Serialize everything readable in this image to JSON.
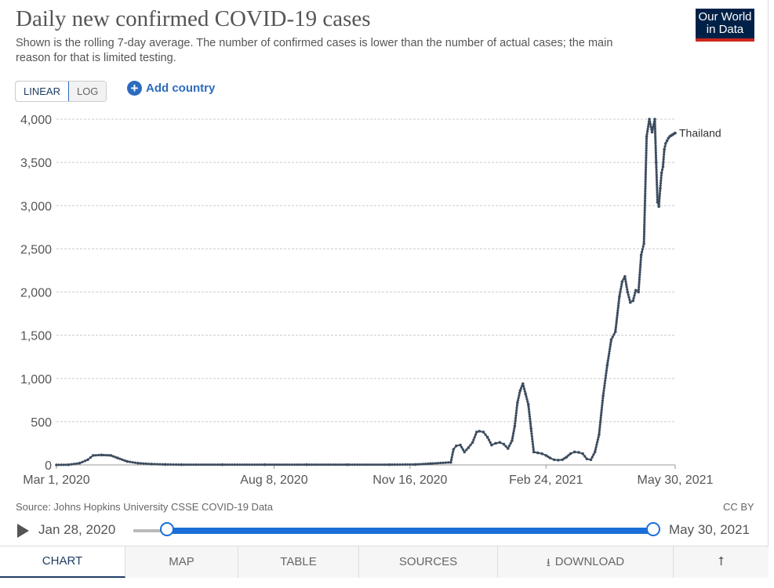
{
  "header": {
    "title": "Daily new confirmed COVID-19 cases",
    "subtitle": "Shown is the rolling 7-day average. The number of confirmed cases is lower than the number of actual cases; the main reason for that is limited testing.",
    "logo_line1": "Our World",
    "logo_line2": "in Data"
  },
  "controls": {
    "linear_label": "LINEAR",
    "log_label": "LOG",
    "add_country_label": "Add country",
    "add_country_icon": "plus-circle-icon"
  },
  "chart_data": {
    "type": "line",
    "title": "Daily new confirmed COVID-19 cases",
    "xlabel": "",
    "ylabel": "",
    "ylim": [
      0,
      4000
    ],
    "y_ticks": [
      0,
      500,
      1000,
      1500,
      2000,
      2500,
      3000,
      3500,
      4000
    ],
    "y_tick_labels": [
      "0",
      "500",
      "1,000",
      "1,500",
      "2,000",
      "2,500",
      "3,000",
      "3,500",
      "4,000"
    ],
    "x_tick_labels": [
      "Mar 1, 2020",
      "Aug 8, 2020",
      "Nov 16, 2020",
      "Feb 24, 2021",
      "May 30, 2021"
    ],
    "x_tick_dates": [
      "2020-03-01",
      "2020-08-08",
      "2020-11-16",
      "2021-02-24",
      "2021-05-30"
    ],
    "xlim": [
      "2020-03-01",
      "2021-05-30"
    ],
    "grid": true,
    "color": "#3c4c5e",
    "series": [
      {
        "name": "Thailand",
        "x": [
          "2020-03-01",
          "2020-03-10",
          "2020-03-18",
          "2020-03-24",
          "2020-03-28",
          "2020-04-03",
          "2020-04-10",
          "2020-04-15",
          "2020-04-22",
          "2020-04-30",
          "2020-05-10",
          "2020-05-20",
          "2020-06-01",
          "2020-07-01",
          "2020-08-01",
          "2020-09-01",
          "2020-10-01",
          "2020-11-01",
          "2020-11-20",
          "2020-12-01",
          "2020-12-16",
          "2020-12-18",
          "2020-12-20",
          "2020-12-23",
          "2020-12-26",
          "2020-12-29",
          "2021-01-01",
          "2021-01-04",
          "2021-01-06",
          "2021-01-09",
          "2021-01-12",
          "2021-01-15",
          "2021-01-18",
          "2021-01-21",
          "2021-01-24",
          "2021-01-27",
          "2021-01-30",
          "2021-02-01",
          "2021-02-03",
          "2021-02-05",
          "2021-02-07",
          "2021-02-09",
          "2021-02-11",
          "2021-02-13",
          "2021-02-15",
          "2021-02-18",
          "2021-02-21",
          "2021-02-24",
          "2021-02-27",
          "2021-03-02",
          "2021-03-05",
          "2021-03-08",
          "2021-03-11",
          "2021-03-14",
          "2021-03-17",
          "2021-03-20",
          "2021-03-23",
          "2021-03-26",
          "2021-03-29",
          "2021-04-01",
          "2021-04-04",
          "2021-04-07",
          "2021-04-10",
          "2021-04-13",
          "2021-04-16",
          "2021-04-19",
          "2021-04-21",
          "2021-04-23",
          "2021-04-25",
          "2021-04-27",
          "2021-04-29",
          "2021-05-01",
          "2021-05-03",
          "2021-05-05",
          "2021-05-07",
          "2021-05-09",
          "2021-05-11",
          "2021-05-13",
          "2021-05-15",
          "2021-05-16",
          "2021-05-17",
          "2021-05-18",
          "2021-05-19",
          "2021-05-20",
          "2021-05-21",
          "2021-05-22",
          "2021-05-23",
          "2021-05-24",
          "2021-05-25",
          "2021-05-26",
          "2021-05-27",
          "2021-05-28",
          "2021-05-29",
          "2021-05-30"
        ],
        "values": [
          0,
          2,
          20,
          60,
          110,
          115,
          110,
          80,
          40,
          20,
          10,
          5,
          3,
          3,
          3,
          3,
          3,
          3,
          5,
          15,
          30,
          180,
          220,
          230,
          150,
          200,
          260,
          380,
          390,
          380,
          320,
          230,
          250,
          260,
          240,
          190,
          280,
          450,
          720,
          860,
          940,
          820,
          700,
          420,
          150,
          140,
          130,
          110,
          80,
          60,
          55,
          60,
          90,
          130,
          150,
          145,
          130,
          70,
          60,
          150,
          350,
          800,
          1150,
          1450,
          1540,
          1950,
          2120,
          2180,
          2000,
          1880,
          1900,
          2020,
          2000,
          2430,
          2560,
          3800,
          4000,
          3850,
          4000,
          3500,
          3040,
          2990,
          3200,
          3380,
          3450,
          3650,
          3720,
          3750,
          3780,
          3800,
          3810,
          3820,
          3830,
          3840
        ]
      }
    ]
  },
  "footer": {
    "source": "Source: Johns Hopkins University CSSE COVID-19 Data",
    "license": "CC BY",
    "timeline_start": "Jan 28, 2020",
    "timeline_end": "May 30, 2021",
    "timeline_start_fraction": 0.0,
    "timeline_end_fraction": 1.0
  },
  "tabs": [
    {
      "label": "CHART"
    },
    {
      "label": "MAP"
    },
    {
      "label": "TABLE"
    },
    {
      "label": "SOURCES"
    },
    {
      "label": "DOWNLOAD",
      "icon": "download-icon"
    },
    {
      "label": "",
      "icon": "share-icon"
    }
  ]
}
